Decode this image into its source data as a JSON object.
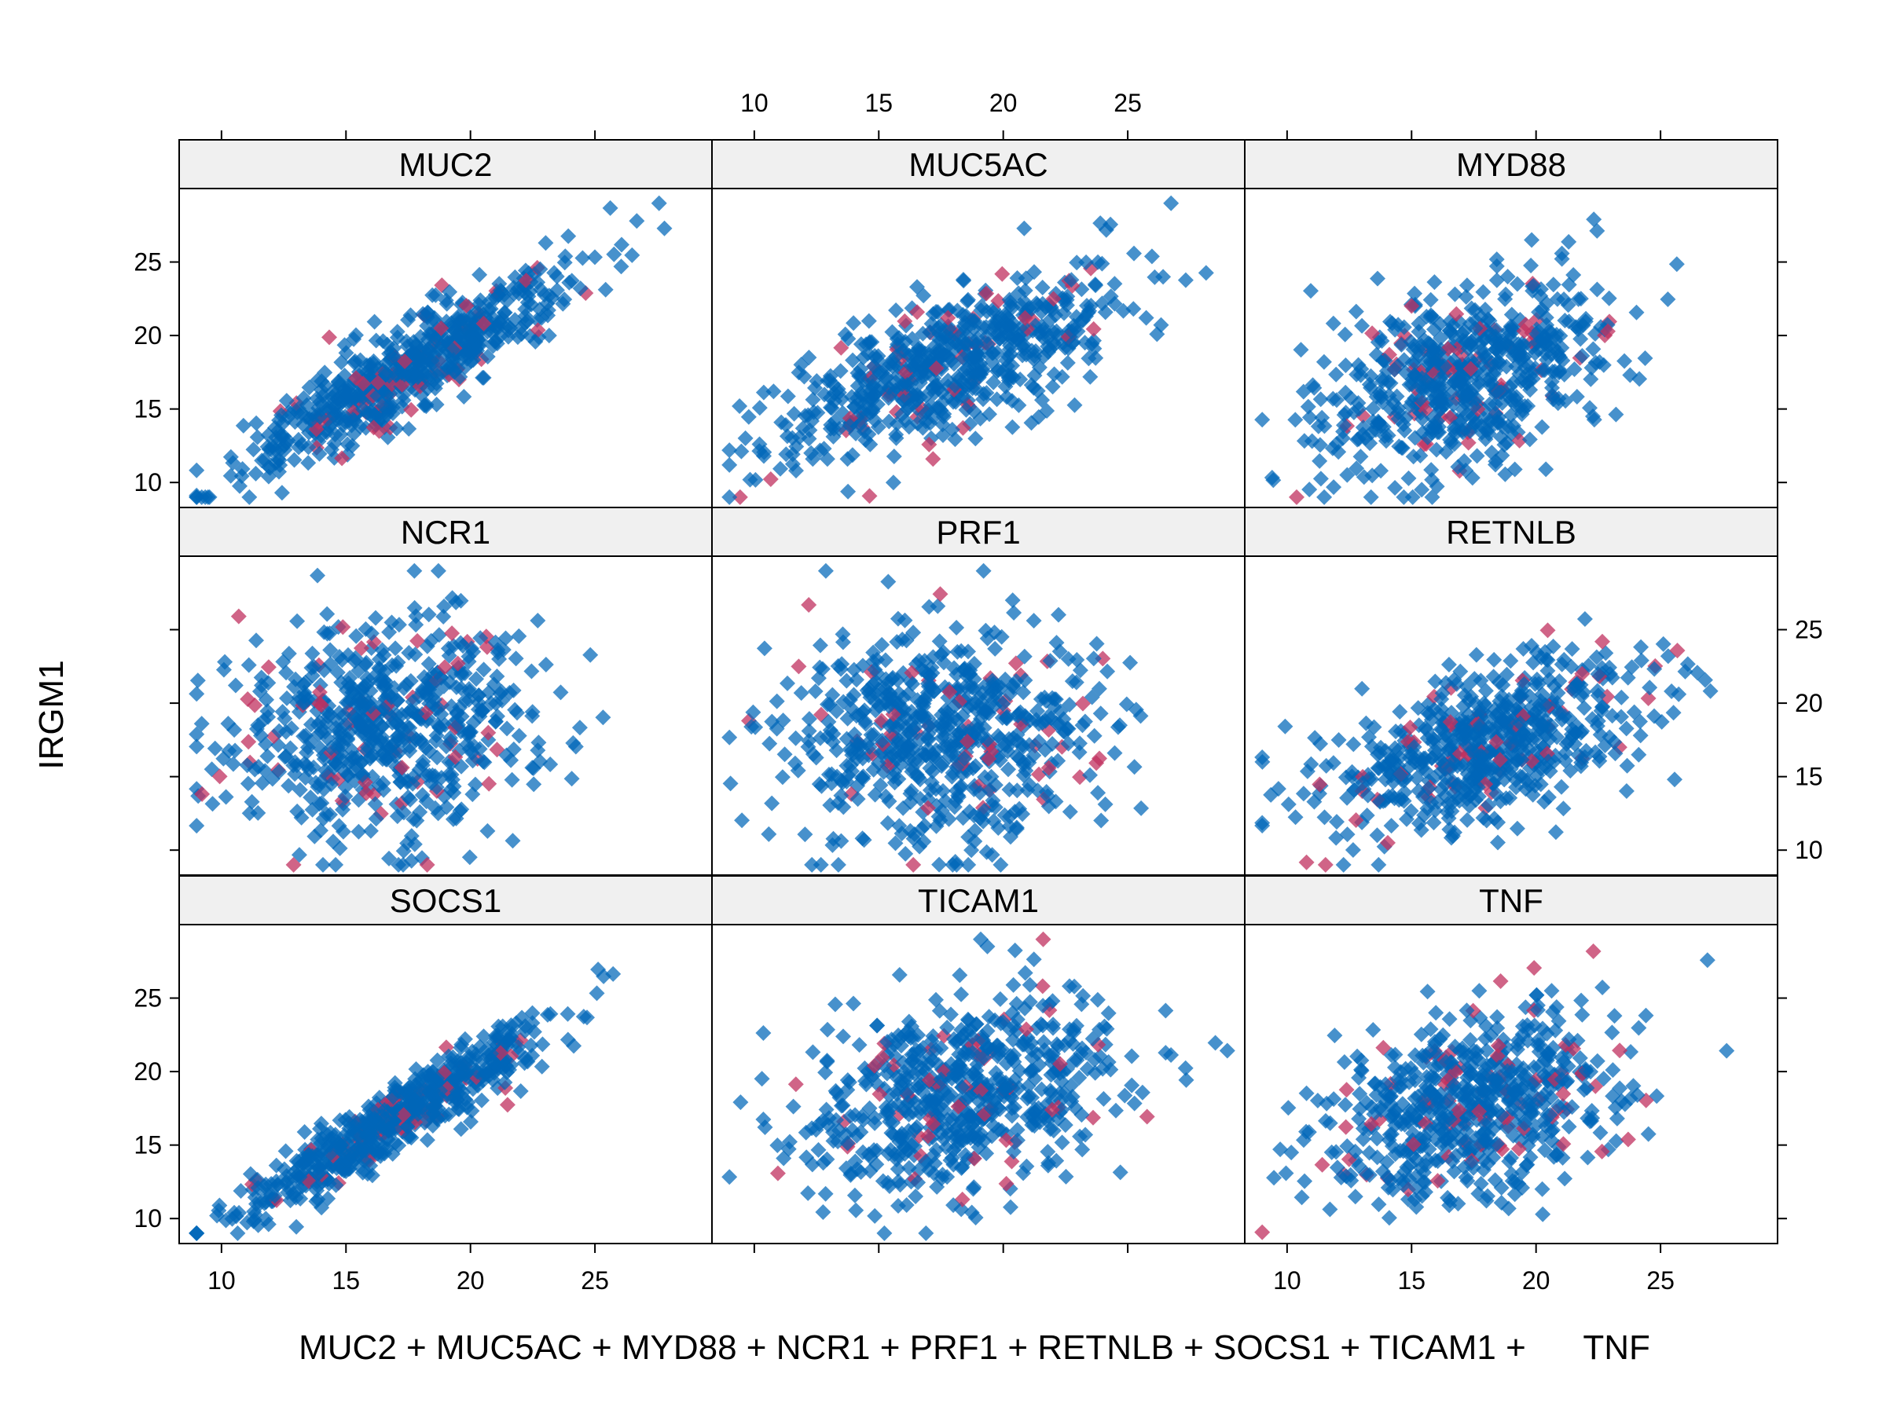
{
  "chart_data": {
    "type": "scatter",
    "ylabel": "IRGM1",
    "xlabel": "MUC2 + MUC5AC + MYD88 + NCR1 + PRF1 + RETNLB + SOCS1 + TICAM1 +      TNF",
    "xlim": [
      8.3,
      29.7
    ],
    "ylim": [
      8.3,
      30.0
    ],
    "x_ticks": [
      10,
      15,
      20,
      25
    ],
    "y_ticks": [
      10,
      15,
      20,
      25
    ],
    "colors": {
      "group_a": "#0067b8",
      "group_b": "#c0305f",
      "strip_bg": "#f0f0f0",
      "axis": "#000000"
    },
    "panels": [
      {
        "name": "MUC2",
        "slope": 0.98,
        "intercept": 0.6,
        "spread_x": 3.6,
        "noise": 1.5,
        "mean_x": 17.5
      },
      {
        "name": "MUC5AC",
        "slope": 0.62,
        "intercept": 7.0,
        "spread_x": 4.0,
        "noise": 2.3,
        "mean_x": 17.8
      },
      {
        "name": "MYD88",
        "slope": 0.45,
        "intercept": 9.5,
        "spread_x": 3.3,
        "noise": 3.0,
        "mean_x": 17.0
      },
      {
        "name": "NCR1",
        "slope": 0.1,
        "intercept": 16.5,
        "spread_x": 3.3,
        "noise": 3.6,
        "mean_x": 16.5
      },
      {
        "name": "PRF1",
        "slope": 0.05,
        "intercept": 17.0,
        "spread_x": 3.4,
        "noise": 3.6,
        "mean_x": 17.5
      },
      {
        "name": "RETNLB",
        "slope": 0.52,
        "intercept": 8.0,
        "spread_x": 3.6,
        "noise": 2.6,
        "mean_x": 18.0
      },
      {
        "name": "SOCS1",
        "slope": 1.0,
        "intercept": -0.2,
        "spread_x": 3.3,
        "noise": 1.1,
        "mean_x": 17.0
      },
      {
        "name": "TICAM1",
        "slope": 0.4,
        "intercept": 11.0,
        "spread_x": 3.5,
        "noise": 3.2,
        "mean_x": 18.5
      },
      {
        "name": "TNF",
        "slope": 0.42,
        "intercept": 10.5,
        "spread_x": 3.3,
        "noise": 3.0,
        "mean_x": 17.5
      }
    ],
    "points_per_panel": 650,
    "group_b_fraction": 0.09,
    "seed": 12345
  }
}
